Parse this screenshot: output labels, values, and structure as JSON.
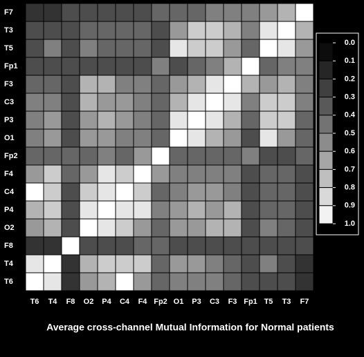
{
  "chart_data": {
    "type": "heatmap",
    "title": "Average cross-channel Mutual Information for Normal patients",
    "rows": [
      "F7",
      "T3",
      "T5",
      "Fp1",
      "F3",
      "C3",
      "P3",
      "O1",
      "Fp2",
      "F4",
      "C4",
      "P4",
      "O2",
      "F8",
      "T4",
      "T6"
    ],
    "columns": [
      "T6",
      "T4",
      "F8",
      "O2",
      "P4",
      "C4",
      "F4",
      "Fp2",
      "O1",
      "P3",
      "C3",
      "F3",
      "Fp1",
      "T5",
      "T3",
      "F7"
    ],
    "values": [
      [
        0.2,
        0.2,
        0.3,
        0.3,
        0.3,
        0.3,
        0.3,
        0.4,
        0.4,
        0.4,
        0.5,
        0.5,
        0.5,
        0.6,
        0.7,
        1.0
      ],
      [
        0.3,
        0.3,
        0.3,
        0.4,
        0.4,
        0.4,
        0.4,
        0.3,
        0.6,
        0.8,
        0.8,
        0.7,
        0.5,
        0.9,
        1.0,
        0.7
      ],
      [
        0.3,
        0.5,
        0.3,
        0.5,
        0.4,
        0.4,
        0.4,
        0.3,
        0.9,
        0.8,
        0.8,
        0.6,
        0.4,
        1.0,
        0.9,
        0.6
      ],
      [
        0.3,
        0.3,
        0.3,
        0.3,
        0.3,
        0.3,
        0.3,
        0.5,
        0.3,
        0.4,
        0.5,
        0.7,
        1.0,
        0.4,
        0.5,
        0.5
      ],
      [
        0.4,
        0.4,
        0.3,
        0.7,
        0.7,
        0.5,
        0.5,
        0.4,
        0.6,
        0.7,
        0.9,
        1.0,
        0.7,
        0.6,
        0.7,
        0.5
      ],
      [
        0.5,
        0.5,
        0.3,
        0.7,
        0.6,
        0.6,
        0.5,
        0.4,
        0.7,
        0.9,
        1.0,
        0.9,
        0.5,
        0.8,
        0.8,
        0.5
      ],
      [
        0.5,
        0.6,
        0.3,
        0.6,
        0.7,
        0.6,
        0.5,
        0.4,
        0.9,
        1.0,
        0.9,
        0.7,
        0.4,
        0.8,
        0.8,
        0.4
      ],
      [
        0.5,
        0.6,
        0.3,
        0.6,
        0.6,
        0.5,
        0.5,
        0.4,
        1.0,
        0.9,
        0.7,
        0.6,
        0.3,
        0.9,
        0.6,
        0.4
      ],
      [
        0.4,
        0.4,
        0.4,
        0.4,
        0.5,
        0.4,
        0.6,
        1.0,
        0.4,
        0.4,
        0.4,
        0.4,
        0.5,
        0.3,
        0.3,
        0.4
      ],
      [
        0.6,
        0.8,
        0.4,
        0.6,
        0.9,
        0.8,
        1.0,
        0.6,
        0.5,
        0.5,
        0.5,
        0.5,
        0.3,
        0.4,
        0.4,
        0.3
      ],
      [
        1.0,
        0.8,
        0.3,
        0.8,
        0.9,
        1.0,
        0.8,
        0.4,
        0.5,
        0.6,
        0.6,
        0.5,
        0.3,
        0.4,
        0.4,
        0.3
      ],
      [
        0.7,
        0.8,
        0.3,
        0.9,
        1.0,
        0.9,
        0.9,
        0.5,
        0.6,
        0.7,
        0.6,
        0.7,
        0.3,
        0.4,
        0.4,
        0.3
      ],
      [
        0.6,
        0.7,
        0.3,
        1.0,
        0.9,
        0.8,
        0.6,
        0.4,
        0.6,
        0.6,
        0.7,
        0.7,
        0.3,
        0.5,
        0.4,
        0.3
      ],
      [
        0.2,
        0.2,
        1.0,
        0.3,
        0.3,
        0.3,
        0.4,
        0.4,
        0.3,
        0.3,
        0.3,
        0.3,
        0.3,
        0.3,
        0.3,
        0.3
      ],
      [
        0.9,
        1.0,
        0.2,
        0.7,
        0.8,
        0.8,
        0.8,
        0.4,
        0.6,
        0.6,
        0.5,
        0.4,
        0.3,
        0.5,
        0.3,
        0.2
      ],
      [
        1.0,
        0.9,
        0.2,
        0.6,
        0.7,
        1.0,
        0.6,
        0.4,
        0.5,
        0.5,
        0.5,
        0.4,
        0.3,
        0.3,
        0.3,
        0.2
      ]
    ],
    "zlim": [
      0,
      1
    ],
    "zticks": [
      {
        "value": 0,
        "label": "0.0"
      },
      0.1,
      0.2,
      0.3,
      0.4,
      0.5,
      0.6,
      0.7,
      0.8,
      0.9,
      {
        "value": 1,
        "label": "1.0"
      }
    ]
  }
}
